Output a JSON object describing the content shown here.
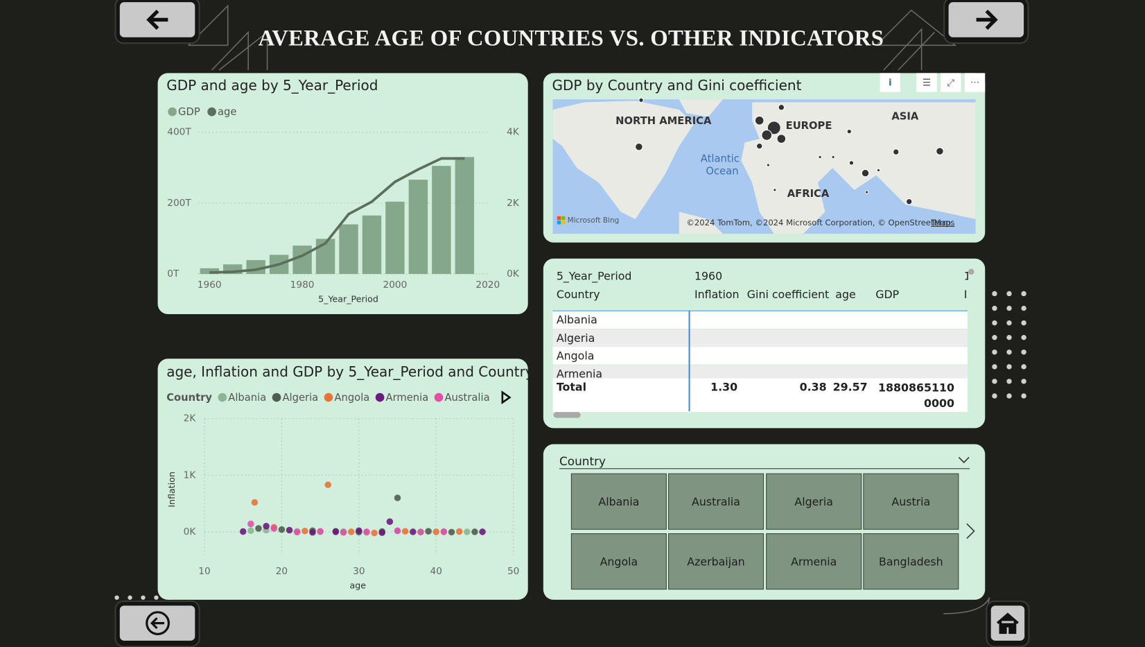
{
  "header": {
    "title": "AVERAGE AGE OF COUNTRIES VS. OTHER INDICATORS"
  },
  "chart_data": [
    {
      "type": "combo",
      "title": "GDP and age by 5_Year_Period",
      "xlabel": "5_Year_Period",
      "x": [
        1960,
        1965,
        1970,
        1975,
        1980,
        1985,
        1990,
        1995,
        2000,
        2005,
        2010,
        2015
      ],
      "xlim": [
        1957.5,
        2020
      ],
      "xticks": [
        1960,
        1980,
        2000,
        2020
      ],
      "ylim": [
        0,
        400
      ],
      "yticks": [
        {
          "value": 0,
          "label": "0T"
        },
        {
          "value": 200,
          "label": "200T"
        },
        {
          "value": 400,
          "label": "400T"
        }
      ],
      "y2lim": [
        0,
        4000
      ],
      "y2ticks": [
        {
          "value": 0,
          "label": "0K"
        },
        {
          "value": 2000,
          "label": "2K"
        },
        {
          "value": 4000,
          "label": "4K"
        }
      ],
      "grid": true,
      "series": [
        {
          "name": "GDP",
          "type": "bar",
          "color": "#85a78b",
          "values": [
            16,
            27,
            39,
            54,
            80,
            99,
            140,
            165,
            204,
            266,
            305,
            330
          ]
        },
        {
          "name": "age",
          "type": "line",
          "axis": "y2",
          "color": "#5b6f5c",
          "values": [
            40,
            60,
            120,
            270,
            515,
            865,
            1690,
            2040,
            2600,
            2950,
            3260,
            3260
          ]
        }
      ]
    },
    {
      "type": "scatter",
      "title": "age, Inflation and GDP by 5_Year_Period and Country",
      "legend_title": "Country",
      "xlabel": "age",
      "ylabel": "Inflation",
      "xlim": [
        10,
        50
      ],
      "xticks": [
        10,
        20,
        30,
        40,
        50
      ],
      "ylim": [
        -400,
        2000
      ],
      "yticks": [
        {
          "value": 0,
          "label": "0K"
        },
        {
          "value": 1000,
          "label": "1K"
        },
        {
          "value": 2000,
          "label": "2K"
        }
      ],
      "grid": true,
      "series": [
        {
          "name": "Albania",
          "color": "#8db593",
          "x": [
            16,
            18,
            22,
            25,
            28,
            31,
            35,
            38,
            41,
            44
          ],
          "values": [
            20,
            30,
            10,
            0,
            5,
            -10,
            15,
            0,
            5,
            0
          ]
        },
        {
          "name": "Algeria",
          "color": "#4f5d50",
          "x": [
            17,
            20,
            24,
            27,
            30,
            33,
            35,
            39,
            42,
            45
          ],
          "values": [
            60,
            40,
            20,
            10,
            -5,
            5,
            600,
            10,
            -5,
            0
          ]
        },
        {
          "name": "Angola",
          "color": "#e8733a",
          "x": [
            16.5,
            19,
            23,
            26,
            29,
            32,
            36,
            40,
            43
          ],
          "values": [
            520,
            80,
            15,
            830,
            0,
            -20,
            10,
            0,
            5
          ]
        },
        {
          "name": "Armenia",
          "color": "#6a1b7d",
          "x": [
            15,
            18,
            21,
            24,
            27,
            30,
            33,
            34,
            37,
            46
          ],
          "values": [
            5,
            100,
            30,
            -10,
            0,
            20,
            -15,
            180,
            0,
            0
          ]
        },
        {
          "name": "Australia",
          "color": "#e14fa8",
          "x": [
            16,
            19,
            22,
            25,
            28,
            31,
            35,
            38,
            41
          ],
          "values": [
            140,
            60,
            -5,
            10,
            -10,
            0,
            20,
            -5,
            0
          ]
        }
      ]
    }
  ],
  "map": {
    "title": "GDP by Country and Gini coefficient",
    "labels": [
      "NORTH AMERICA",
      "EUROPE",
      "ASIA",
      "Atlantic",
      "Ocean",
      "AFRICA"
    ],
    "brand": "Microsoft Bing",
    "attribution": "©2024 TomTom, ©2024 Microsoft Corporation, © OpenStreetMap",
    "terms": "Terms"
  },
  "table": {
    "period_label": "5_Year_Period",
    "period_values": [
      "1960",
      "1"
    ],
    "columns": [
      "Country",
      "Inflation",
      "Gini coefficient",
      "age",
      "GDP",
      "I"
    ],
    "rows": [
      "Albania",
      "Algeria",
      "Angola",
      "Armenia"
    ],
    "total_label": "Total",
    "totals": [
      "1.30",
      "0.38",
      "29.57",
      "18808651100000"
    ]
  },
  "slicer": {
    "title": "Country",
    "items": [
      "Albania",
      "Angola",
      "Australia",
      "Azerbaijan",
      "Algeria",
      "Armenia",
      "Austria",
      "Bangladesh"
    ]
  }
}
